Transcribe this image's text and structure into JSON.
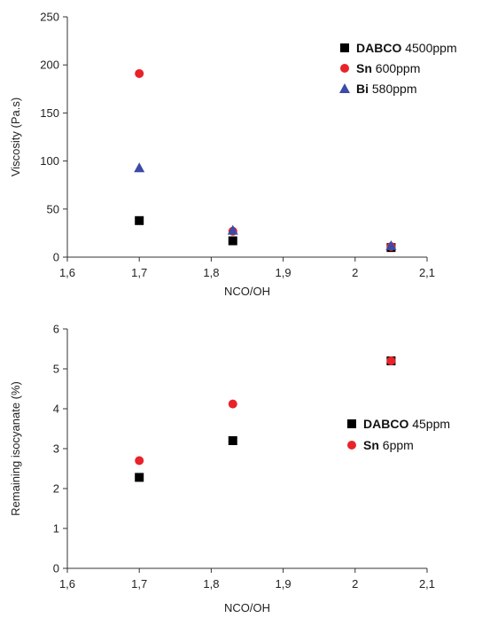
{
  "chart_data": [
    {
      "type": "scatter",
      "xlabel": "NCO/OH",
      "ylabel": "Viscosity (Pa.s)",
      "xlim": [
        1.6,
        2.1
      ],
      "ylim": [
        0,
        250
      ],
      "xticks": [
        "1,6",
        "1,7",
        "1,8",
        "1,9",
        "2",
        "2,1"
      ],
      "yticks": [
        "0",
        "50",
        "100",
        "150",
        "200",
        "250"
      ],
      "legend_position": "top-right",
      "grid": false,
      "series": [
        {
          "name_bold": "DABCO",
          "name_rest": " 4500ppm",
          "marker": "square",
          "color": "#000000",
          "x": [
            1.7,
            1.83,
            2.05
          ],
          "y": [
            38,
            17,
            10
          ]
        },
        {
          "name_bold": "Sn",
          "name_rest": " 600ppm",
          "marker": "circle",
          "color": "#e8232a",
          "x": [
            1.7,
            1.83,
            2.05
          ],
          "y": [
            191,
            27,
            11
          ]
        },
        {
          "name_bold": "Bi",
          "name_rest": " 580ppm",
          "marker": "triangle",
          "color": "#3b4ba6",
          "x": [
            1.7,
            1.83,
            2.05
          ],
          "y": [
            93,
            28,
            12
          ]
        }
      ]
    },
    {
      "type": "scatter",
      "xlabel": "NCO/OH",
      "ylabel": "Remaining isocyanate (%)",
      "xlim": [
        1.6,
        2.1
      ],
      "ylim": [
        0,
        6
      ],
      "xticks": [
        "1,6",
        "1,7",
        "1,8",
        "1,9",
        "2",
        "2,1"
      ],
      "yticks": [
        "0",
        "1",
        "2",
        "3",
        "4",
        "5",
        "6"
      ],
      "legend_position": "right",
      "grid": false,
      "series": [
        {
          "name_bold": "DABCO",
          "name_rest": " 45ppm",
          "marker": "square",
          "color": "#000000",
          "x": [
            1.7,
            1.83,
            2.05
          ],
          "y": [
            2.28,
            3.2,
            5.2
          ]
        },
        {
          "name_bold": "Sn",
          "name_rest": " 6ppm",
          "marker": "circle",
          "color": "#e8232a",
          "x": [
            1.7,
            1.83,
            2.05
          ],
          "y": [
            2.7,
            4.12,
            5.2
          ]
        }
      ]
    }
  ]
}
